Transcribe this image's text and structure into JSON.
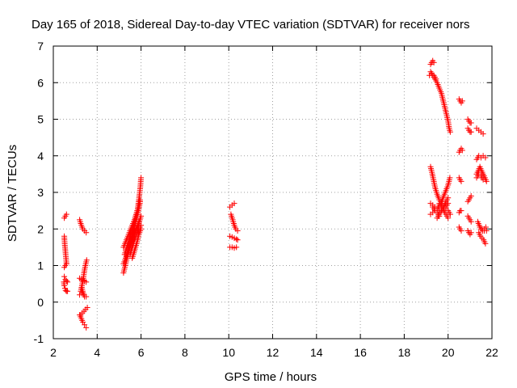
{
  "chart_data": {
    "type": "scatter",
    "title": "Day 165 of 2018, Sidereal Day-to-day VTEC variation (SDTVAR) for receiver nors",
    "xlabel": "GPS time / hours",
    "ylabel": "SDTVAR / TECUs",
    "xlim": [
      2,
      22
    ],
    "ylim": [
      -1,
      7
    ],
    "xticks": [
      2,
      4,
      6,
      8,
      10,
      12,
      14,
      16,
      18,
      20,
      22
    ],
    "yticks": [
      -1,
      0,
      1,
      2,
      3,
      4,
      5,
      6,
      7
    ],
    "grid": true,
    "marker": "+",
    "marker_color": "#ff0000",
    "series": [
      {
        "name": "nors",
        "segments": [
          [
            [
              2.5,
              2.3
            ],
            [
              2.55,
              2.35
            ],
            [
              2.6,
              2.4
            ]
          ],
          [
            [
              2.5,
              1.8
            ],
            [
              2.52,
              1.6
            ],
            [
              2.55,
              1.4
            ],
            [
              2.58,
              1.2
            ],
            [
              2.6,
              1.05
            ]
          ],
          [
            [
              2.5,
              0.95
            ],
            [
              2.55,
              1.0
            ],
            [
              2.6,
              1.05
            ]
          ],
          [
            [
              2.48,
              0.55
            ],
            [
              2.5,
              0.45
            ],
            [
              2.53,
              0.38
            ],
            [
              2.56,
              0.32
            ],
            [
              2.6,
              0.3
            ],
            [
              2.65,
              0.3
            ]
          ],
          [
            [
              2.5,
              0.7
            ],
            [
              2.55,
              0.62
            ],
            [
              2.6,
              0.58
            ],
            [
              2.65,
              0.55
            ]
          ],
          [
            [
              3.2,
              2.25
            ],
            [
              3.28,
              2.1
            ],
            [
              3.35,
              2.0
            ],
            [
              3.42,
              1.95
            ],
            [
              3.5,
              1.9
            ]
          ],
          [
            [
              3.2,
              -0.35
            ],
            [
              3.28,
              -0.45
            ],
            [
              3.35,
              -0.55
            ],
            [
              3.42,
              -0.62
            ],
            [
              3.5,
              -0.7
            ]
          ],
          [
            [
              3.25,
              -0.35
            ],
            [
              3.32,
              -0.3
            ],
            [
              3.4,
              -0.25
            ],
            [
              3.47,
              -0.2
            ],
            [
              3.55,
              -0.15
            ]
          ],
          [
            [
              3.2,
              0.65
            ],
            [
              3.28,
              0.62
            ],
            [
              3.35,
              0.6
            ],
            [
              3.42,
              0.58
            ],
            [
              3.5,
              0.55
            ]
          ],
          [
            [
              3.2,
              0.2
            ],
            [
              3.3,
              0.25
            ],
            [
              3.4,
              0.2
            ],
            [
              3.5,
              0.15
            ]
          ],
          [
            [
              3.25,
              0.3
            ],
            [
              3.32,
              0.5
            ],
            [
              3.38,
              0.7
            ],
            [
              3.43,
              0.9
            ],
            [
              3.48,
              1.05
            ],
            [
              3.52,
              1.15
            ]
          ],
          [
            [
              3.3,
              0.4
            ],
            [
              3.36,
              0.25
            ],
            [
              3.42,
              0.15
            ]
          ],
          [
            [
              5.2,
              0.8
            ],
            [
              5.28,
              1.0
            ],
            [
              5.36,
              1.2
            ],
            [
              5.44,
              1.4
            ],
            [
              5.52,
              1.6
            ],
            [
              5.6,
              1.8
            ],
            [
              5.68,
              2.0
            ],
            [
              5.76,
              2.25
            ],
            [
              5.84,
              2.5
            ],
            [
              5.9,
              2.8
            ],
            [
              5.96,
              3.1
            ],
            [
              6.0,
              3.4
            ]
          ],
          [
            [
              5.2,
              1.05
            ],
            [
              5.3,
              1.2
            ],
            [
              5.4,
              1.35
            ],
            [
              5.5,
              1.5
            ],
            [
              5.6,
              1.65
            ],
            [
              5.7,
              1.85
            ],
            [
              5.8,
              2.0
            ],
            [
              5.9,
              2.15
            ],
            [
              6.0,
              2.35
            ]
          ],
          [
            [
              5.25,
              1.3
            ],
            [
              5.35,
              1.5
            ],
            [
              5.45,
              1.7
            ],
            [
              5.55,
              1.9
            ],
            [
              5.65,
              2.1
            ],
            [
              5.75,
              2.35
            ],
            [
              5.85,
              2.55
            ],
            [
              5.95,
              2.8
            ]
          ],
          [
            [
              5.2,
              1.5
            ],
            [
              5.3,
              1.65
            ],
            [
              5.4,
              1.8
            ],
            [
              5.5,
              1.95
            ],
            [
              5.6,
              2.1
            ],
            [
              5.7,
              2.25
            ],
            [
              5.8,
              2.4
            ]
          ],
          [
            [
              5.3,
              1.2
            ],
            [
              5.4,
              1.4
            ],
            [
              5.5,
              1.6
            ],
            [
              5.6,
              1.75
            ],
            [
              5.7,
              1.9
            ],
            [
              5.8,
              2.05
            ],
            [
              5.9,
              2.2
            ]
          ],
          [
            [
              5.4,
              1.45
            ],
            [
              5.5,
              1.65
            ],
            [
              5.6,
              1.85
            ],
            [
              5.7,
              2.05
            ],
            [
              5.8,
              2.3
            ],
            [
              5.9,
              2.55
            ],
            [
              5.96,
              2.75
            ]
          ],
          [
            [
              5.5,
              1.3
            ],
            [
              5.6,
              1.5
            ],
            [
              5.7,
              1.7
            ],
            [
              5.8,
              1.85
            ],
            [
              5.9,
              2.0
            ],
            [
              6.0,
              2.1
            ]
          ],
          [
            [
              5.6,
              1.2
            ],
            [
              5.7,
              1.4
            ],
            [
              5.8,
              1.6
            ],
            [
              5.9,
              1.85
            ],
            [
              6.0,
              2.0
            ]
          ],
          [
            [
              10.05,
              2.6
            ],
            [
              10.15,
              2.65
            ],
            [
              10.25,
              2.7
            ]
          ],
          [
            [
              10.1,
              2.4
            ],
            [
              10.18,
              2.25
            ],
            [
              10.25,
              2.1
            ],
            [
              10.32,
              2.0
            ],
            [
              10.4,
              1.95
            ]
          ],
          [
            [
              10.05,
              1.8
            ],
            [
              10.15,
              1.78
            ],
            [
              10.25,
              1.75
            ],
            [
              10.35,
              1.72
            ],
            [
              10.4,
              1.7
            ]
          ],
          [
            [
              10.05,
              1.5
            ],
            [
              10.15,
              1.5
            ],
            [
              10.25,
              1.48
            ],
            [
              10.35,
              1.5
            ]
          ],
          [
            [
              19.2,
              6.5
            ],
            [
              19.25,
              6.55
            ],
            [
              19.3,
              6.6
            ],
            [
              19.35,
              6.55
            ]
          ],
          [
            [
              19.2,
              6.3
            ],
            [
              19.3,
              6.2
            ],
            [
              19.4,
              6.1
            ],
            [
              19.5,
              6.0
            ],
            [
              19.6,
              5.85
            ],
            [
              19.7,
              5.7
            ],
            [
              19.8,
              5.45
            ],
            [
              19.9,
              5.2
            ],
            [
              20.0,
              4.95
            ],
            [
              20.05,
              4.75
            ],
            [
              20.1,
              4.65
            ]
          ],
          [
            [
              19.15,
              6.2
            ],
            [
              19.25,
              6.25
            ],
            [
              19.35,
              6.2
            ],
            [
              19.45,
              6.1
            ]
          ],
          [
            [
              19.2,
              3.7
            ],
            [
              19.28,
              3.5
            ],
            [
              19.35,
              3.3
            ],
            [
              19.42,
              3.1
            ],
            [
              19.5,
              2.95
            ],
            [
              19.6,
              2.8
            ],
            [
              19.7,
              2.7
            ],
            [
              19.8,
              2.6
            ],
            [
              19.9,
              2.55
            ],
            [
              20.0,
              2.5
            ],
            [
              20.1,
              2.4
            ]
          ],
          [
            [
              19.2,
              2.7
            ],
            [
              19.3,
              2.65
            ],
            [
              19.4,
              2.6
            ],
            [
              19.5,
              2.55
            ],
            [
              19.6,
              2.5
            ],
            [
              19.7,
              2.5
            ],
            [
              19.8,
              2.55
            ],
            [
              19.9,
              2.6
            ],
            [
              20.0,
              2.7
            ]
          ],
          [
            [
              19.2,
              2.4
            ],
            [
              19.3,
              2.45
            ],
            [
              19.4,
              2.5
            ],
            [
              19.5,
              2.55
            ],
            [
              19.6,
              2.65
            ],
            [
              19.7,
              2.75
            ],
            [
              19.8,
              2.9
            ],
            [
              19.9,
              3.05
            ],
            [
              20.0,
              3.2
            ],
            [
              20.08,
              3.4
            ]
          ],
          [
            [
              19.5,
              2.3
            ],
            [
              19.6,
              2.4
            ],
            [
              19.7,
              2.5
            ],
            [
              19.8,
              2.6
            ],
            [
              19.9,
              2.75
            ],
            [
              20.0,
              2.85
            ]
          ],
          [
            [
              19.6,
              2.7
            ],
            [
              19.7,
              2.6
            ],
            [
              19.8,
              2.5
            ],
            [
              19.9,
              2.4
            ],
            [
              20.0,
              2.3
            ]
          ],
          [
            [
              19.3,
              2.6
            ],
            [
              19.4,
              2.5
            ],
            [
              19.5,
              2.45
            ],
            [
              19.6,
              2.35
            ]
          ],
          [
            [
              20.5,
              5.55
            ],
            [
              20.55,
              5.5
            ],
            [
              20.6,
              5.45
            ],
            [
              20.65,
              5.5
            ]
          ],
          [
            [
              20.5,
              4.1
            ],
            [
              20.55,
              4.15
            ],
            [
              20.6,
              4.2
            ],
            [
              20.65,
              4.15
            ]
          ],
          [
            [
              20.5,
              3.4
            ],
            [
              20.55,
              3.35
            ],
            [
              20.6,
              3.3
            ]
          ],
          [
            [
              20.5,
              2.45
            ],
            [
              20.55,
              2.5
            ],
            [
              20.6,
              2.5
            ]
          ],
          [
            [
              20.5,
              2.05
            ],
            [
              20.55,
              2.0
            ],
            [
              20.6,
              1.95
            ]
          ],
          [
            [
              20.9,
              5.0
            ],
            [
              20.95,
              4.95
            ],
            [
              21.0,
              4.9
            ],
            [
              21.05,
              4.9
            ]
          ],
          [
            [
              20.9,
              4.75
            ],
            [
              20.95,
              4.7
            ],
            [
              21.0,
              4.65
            ],
            [
              21.05,
              4.65
            ]
          ],
          [
            [
              20.9,
              2.75
            ],
            [
              20.95,
              2.8
            ],
            [
              21.0,
              2.85
            ],
            [
              21.05,
              2.9
            ]
          ],
          [
            [
              20.9,
              2.35
            ],
            [
              20.95,
              2.3
            ],
            [
              21.0,
              2.25
            ],
            [
              21.05,
              2.2
            ]
          ],
          [
            [
              20.9,
              1.95
            ],
            [
              20.95,
              1.9
            ],
            [
              21.0,
              1.85
            ],
            [
              21.05,
              1.9
            ]
          ],
          [
            [
              21.3,
              4.75
            ],
            [
              21.4,
              4.7
            ],
            [
              21.5,
              4.65
            ],
            [
              21.6,
              4.6
            ]
          ],
          [
            [
              21.3,
              3.9
            ],
            [
              21.4,
              4.0
            ],
            [
              21.5,
              3.95
            ],
            [
              21.6,
              4.0
            ],
            [
              21.7,
              3.95
            ]
          ],
          [
            [
              21.3,
              3.5
            ],
            [
              21.38,
              3.6
            ],
            [
              21.45,
              3.7
            ],
            [
              21.52,
              3.6
            ],
            [
              21.6,
              3.5
            ],
            [
              21.68,
              3.4
            ],
            [
              21.75,
              3.3
            ]
          ],
          [
            [
              21.3,
              3.4
            ],
            [
              21.4,
              3.5
            ],
            [
              21.5,
              3.45
            ],
            [
              21.6,
              3.35
            ]
          ],
          [
            [
              21.35,
              2.2
            ],
            [
              21.42,
              2.1
            ],
            [
              21.5,
              2.0
            ],
            [
              21.58,
              1.95
            ],
            [
              21.65,
              2.0
            ],
            [
              21.72,
              2.05
            ]
          ],
          [
            [
              21.4,
              1.9
            ],
            [
              21.48,
              1.8
            ],
            [
              21.55,
              1.75
            ],
            [
              21.62,
              1.7
            ],
            [
              21.7,
              1.6
            ]
          ],
          [
            [
              21.45,
              2.05
            ],
            [
              21.55,
              2.0
            ],
            [
              21.65,
              1.95
            ],
            [
              21.75,
              1.95
            ]
          ]
        ]
      }
    ]
  }
}
